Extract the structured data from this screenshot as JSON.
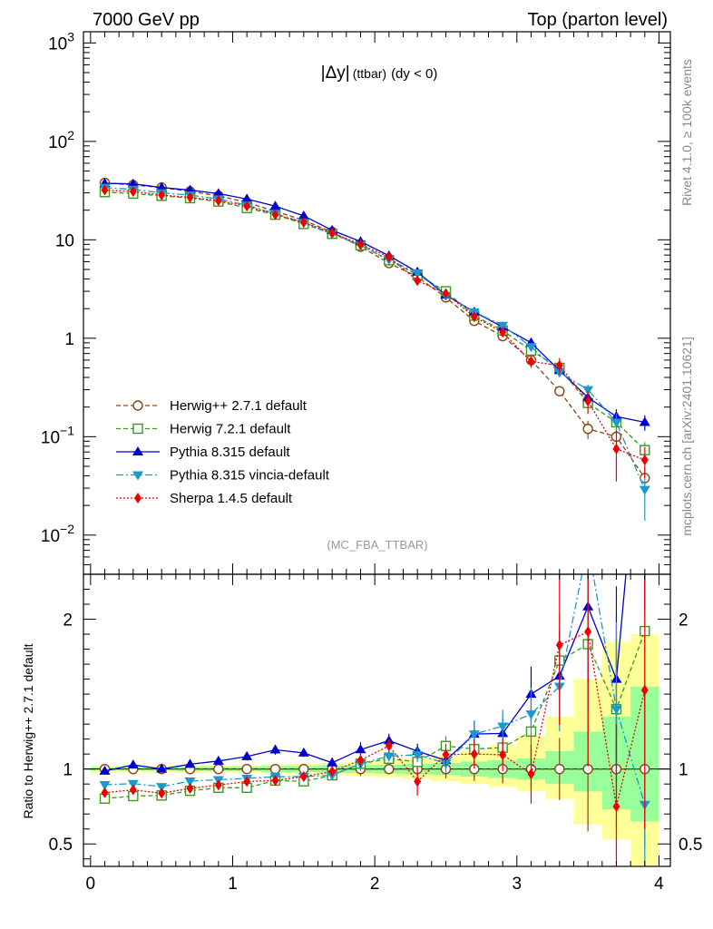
{
  "header": {
    "left": "7000 GeV pp",
    "right": "Top (parton level)"
  },
  "side_labels": {
    "rivet": "Rivet 4.1.0, ≥ 100k events",
    "mcplots": "mcplots.cern.ch [arXiv:2401.10621]"
  },
  "colors": {
    "herwigpp": "#8b4513",
    "herwig7": "#3a9a1a",
    "pythia": "#0000cc",
    "vincia": "#1a9acc",
    "sherpa": "#ee0000",
    "band_inner": "#99ff99",
    "band_outer": "#ffff99"
  },
  "chart_data": {
    "type": "line",
    "title": "|Δy| (ttbar) (dy < 0)",
    "title_parts": {
      "main": "|Δy|",
      "sub": "(ttbar)",
      "cond": "(dy < 0)"
    },
    "analysis": "(MC_FBA_TTBAR)",
    "xlabel": "",
    "xlim": [
      -0.05,
      4.08
    ],
    "x_ticks": [
      "0",
      "1",
      "2",
      "3",
      "4"
    ],
    "main_panel": {
      "yscale": "log",
      "ylim": [
        0.004,
        1300
      ],
      "y_ticks": [
        "10^-2",
        "10^-1",
        "1",
        "10",
        "10^2",
        "10^3"
      ]
    },
    "ratio_panel": {
      "ylabel": "Ratio to Herwig++ 2.7.1 default",
      "ylim": [
        0.35,
        2.3
      ],
      "y_ticks": [
        "0.5",
        "1",
        "2"
      ],
      "y_ticks_right": [
        "0.5",
        "1",
        "2"
      ]
    },
    "x": [
      0.1,
      0.3,
      0.5,
      0.7,
      0.9,
      1.1,
      1.3,
      1.5,
      1.7,
      1.9,
      2.1,
      2.3,
      2.5,
      2.7,
      2.9,
      3.1,
      3.3,
      3.5,
      3.7,
      3.9
    ],
    "band": {
      "inner_low": [
        0.99,
        0.99,
        0.99,
        0.985,
        0.985,
        0.985,
        0.98,
        0.98,
        0.975,
        0.975,
        0.97,
        0.965,
        0.96,
        0.95,
        0.94,
        0.93,
        0.9,
        0.85,
        0.73,
        0.65
      ],
      "inner_high": [
        1.01,
        1.01,
        1.01,
        1.015,
        1.015,
        1.015,
        1.02,
        1.02,
        1.025,
        1.025,
        1.03,
        1.035,
        1.04,
        1.05,
        1.06,
        1.07,
        1.12,
        1.25,
        1.35,
        1.55
      ],
      "outer_low": [
        0.98,
        0.98,
        0.98,
        0.975,
        0.975,
        0.975,
        0.97,
        0.965,
        0.96,
        0.955,
        0.945,
        0.935,
        0.92,
        0.9,
        0.88,
        0.85,
        0.8,
        0.63,
        0.53,
        0.35
      ],
      "outer_high": [
        1.02,
        1.02,
        1.02,
        1.025,
        1.025,
        1.025,
        1.03,
        1.035,
        1.04,
        1.045,
        1.06,
        1.07,
        1.09,
        1.12,
        1.16,
        1.22,
        1.35,
        1.6,
        1.85,
        1.9
      ]
    },
    "series": [
      {
        "name": "Herwig++ 2.7.1 default",
        "color_key": "herwigpp",
        "marker": "circle-open",
        "dash": "5,3",
        "values": [
          38.0,
          36.0,
          34.0,
          31.0,
          28.0,
          24.0,
          19.5,
          15.8,
          12.0,
          8.5,
          5.8,
          4.2,
          2.6,
          1.5,
          1.05,
          0.6,
          0.29,
          0.12,
          0.1,
          0.038
        ],
        "errors": [
          0.4,
          0.4,
          0.4,
          0.4,
          0.3,
          0.3,
          0.3,
          0.2,
          0.2,
          0.2,
          0.1,
          0.1,
          0.08,
          0.06,
          0.05,
          0.04,
          0.03,
          0.025,
          0.02,
          0.01
        ]
      },
      {
        "name": "Herwig 7.2.1 default",
        "color_key": "herwig7",
        "marker": "square-open",
        "dash": "5,3",
        "values": [
          30.5,
          29.5,
          28.0,
          26.5,
          24.5,
          21.0,
          18.0,
          14.5,
          11.5,
          8.8,
          6.2,
          4.4,
          3.0,
          1.7,
          1.2,
          0.75,
          0.5,
          0.22,
          0.14,
          0.073
        ],
        "errors": [
          0.4,
          0.4,
          0.4,
          0.3,
          0.3,
          0.3,
          0.3,
          0.2,
          0.2,
          0.2,
          0.1,
          0.1,
          0.08,
          0.06,
          0.05,
          0.05,
          0.04,
          0.03,
          0.02,
          0.015
        ]
      },
      {
        "name": "Pythia 8.315 default",
        "color_key": "pythia",
        "marker": "triangle-up",
        "dash": "",
        "values": [
          37.5,
          37.0,
          34.0,
          32.0,
          29.5,
          26.0,
          22.0,
          17.5,
          12.5,
          9.6,
          6.9,
          4.7,
          2.75,
          1.85,
          1.3,
          0.9,
          0.47,
          0.25,
          0.16,
          0.14
        ],
        "errors": [
          0.4,
          0.4,
          0.4,
          0.4,
          0.3,
          0.3,
          0.3,
          0.2,
          0.2,
          0.2,
          0.15,
          0.1,
          0.08,
          0.06,
          0.05,
          0.05,
          0.04,
          0.03,
          0.03,
          0.025
        ]
      },
      {
        "name": "Pythia 8.315 vincia-default",
        "color_key": "vincia",
        "marker": "triangle-down",
        "dash": "8,3,2,3",
        "values": [
          34.0,
          32.5,
          30.0,
          28.5,
          26.0,
          22.5,
          18.5,
          15.0,
          11.5,
          8.8,
          6.3,
          4.6,
          2.7,
          1.85,
          1.35,
          0.82,
          0.45,
          0.3,
          0.14,
          0.029
        ],
        "errors": [
          0.4,
          0.4,
          0.4,
          0.3,
          0.3,
          0.3,
          0.3,
          0.2,
          0.2,
          0.2,
          0.1,
          0.1,
          0.08,
          0.06,
          0.05,
          0.05,
          0.04,
          0.04,
          0.03,
          0.015
        ]
      },
      {
        "name": "Sherpa 1.4.5 default",
        "color_key": "sherpa",
        "marker": "diamond",
        "dash": "2,2",
        "values": [
          32.0,
          31.0,
          28.5,
          27.0,
          25.0,
          22.0,
          18.0,
          15.0,
          11.8,
          9.0,
          6.7,
          3.85,
          2.85,
          1.65,
          1.15,
          0.58,
          0.53,
          0.23,
          0.075,
          0.058
        ],
        "errors": [
          0.4,
          0.4,
          0.4,
          0.3,
          0.3,
          0.3,
          0.3,
          0.2,
          0.2,
          0.2,
          0.15,
          0.3,
          0.1,
          0.08,
          0.06,
          0.08,
          0.1,
          0.06,
          0.04,
          0.02
        ]
      }
    ]
  }
}
